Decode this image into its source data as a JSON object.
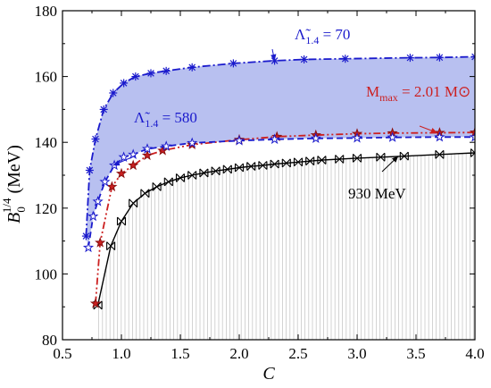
{
  "chart_data": {
    "type": "line",
    "x_axis": {
      "label": "C",
      "range": [
        0.5,
        4.0
      ],
      "ticks": [
        "0.5",
        "1.0",
        "1.5",
        "2.0",
        "2.5",
        "3.0",
        "3.5",
        "4.0"
      ]
    },
    "y_axis": {
      "label_main": "B",
      "label_sub": "0",
      "label_sup": "1/4",
      "label_unit": " (MeV)",
      "range": [
        80,
        180
      ],
      "ticks": [
        "80",
        "100",
        "120",
        "140",
        "160",
        "180"
      ]
    },
    "grid": false,
    "series": [
      {
        "name": "Λ̃1.4 = 70",
        "color": "#1a1acc",
        "line_style": "dashdot",
        "marker": "asterisk",
        "x": [
          0.7,
          0.73,
          0.78,
          0.85,
          0.93,
          1.02,
          1.12,
          1.25,
          1.38,
          1.6,
          1.95,
          2.3,
          2.55,
          2.9,
          3.45,
          3.7,
          4.0
        ],
        "y": [
          111.5,
          131.5,
          141,
          150,
          155,
          158,
          160,
          161,
          161.7,
          162.8,
          164,
          164.8,
          165.2,
          165.4,
          165.7,
          165.8,
          166
        ]
      },
      {
        "name": "Λ̃1.4 = 580",
        "color": "#1a1acc",
        "line_style": "dashed",
        "marker": "star-open",
        "x": [
          0.72,
          0.76,
          0.8,
          0.86,
          0.94,
          1.02,
          1.1,
          1.22,
          1.38,
          1.6,
          2.0,
          2.3,
          2.65,
          3.0,
          3.3,
          3.7,
          4.0
        ],
        "y": [
          108,
          117.5,
          122,
          128,
          133,
          135.5,
          136.3,
          138,
          138.8,
          139.8,
          140.5,
          140.9,
          141.2,
          141.3,
          141.5,
          141.6,
          141.6
        ]
      },
      {
        "name": "M_max = 2.01 M⊙",
        "color": "#cc2020",
        "line_style": "dashdotdot",
        "marker": "star-filled",
        "x": [
          0.78,
          0.82,
          0.92,
          1.0,
          1.1,
          1.22,
          1.35,
          1.6,
          2.0,
          2.32,
          2.65,
          3.0,
          3.3,
          3.7,
          4.0
        ],
        "y": [
          91,
          109.5,
          126.5,
          130.5,
          133,
          136,
          137.5,
          139.3,
          140.8,
          141.7,
          142.2,
          142.6,
          142.8,
          142.9,
          143
        ]
      },
      {
        "name": "930 MeV",
        "color": "#000000",
        "line_style": "solid",
        "marker": "x-box",
        "x": [
          0.8,
          0.91,
          1.0,
          1.1,
          1.2,
          1.3,
          1.4,
          1.5,
          1.6,
          1.7,
          1.8,
          1.9,
          2.0,
          2.1,
          2.2,
          2.3,
          2.4,
          2.5,
          2.6,
          2.7,
          2.85,
          3.0,
          3.2,
          3.4,
          3.7,
          4.0
        ],
        "y": [
          90.5,
          108.5,
          116,
          121.5,
          124.5,
          126.5,
          128,
          129.2,
          130,
          130.7,
          131.3,
          131.8,
          132.3,
          132.7,
          133,
          133.4,
          133.7,
          134,
          134.3,
          134.6,
          134.9,
          135.2,
          135.5,
          135.8,
          136.3,
          136.8
        ]
      }
    ],
    "annotations": [
      {
        "text_main": "Λ̃",
        "text_sub": "1.4",
        "text_rest": " = 70",
        "color": "#1a1acc",
        "target": [
          2.3,
          164.8
        ]
      },
      {
        "text_main": "Λ̃",
        "text_sub": "1.4",
        "text_rest": " = 580",
        "color": "#1a1acc",
        "target": [
          0.93,
          133
        ]
      },
      {
        "text_main": "M",
        "text_sub": "max",
        "text_rest": " = 2.01 M",
        "text_end": "⊙",
        "color": "#cc2020",
        "target": [
          3.68,
          142.9
        ]
      },
      {
        "text_main": "930 MeV",
        "color": "#000000",
        "target": [
          3.35,
          135.8
        ]
      }
    ],
    "shaded_regions": [
      {
        "description": "between Λ̃1.4=70 and Λ̃1.4=580 curves",
        "color": "#b8c0f0"
      },
      {
        "description": "below 930 MeV curve",
        "color": "#d9d9d9"
      }
    ]
  }
}
